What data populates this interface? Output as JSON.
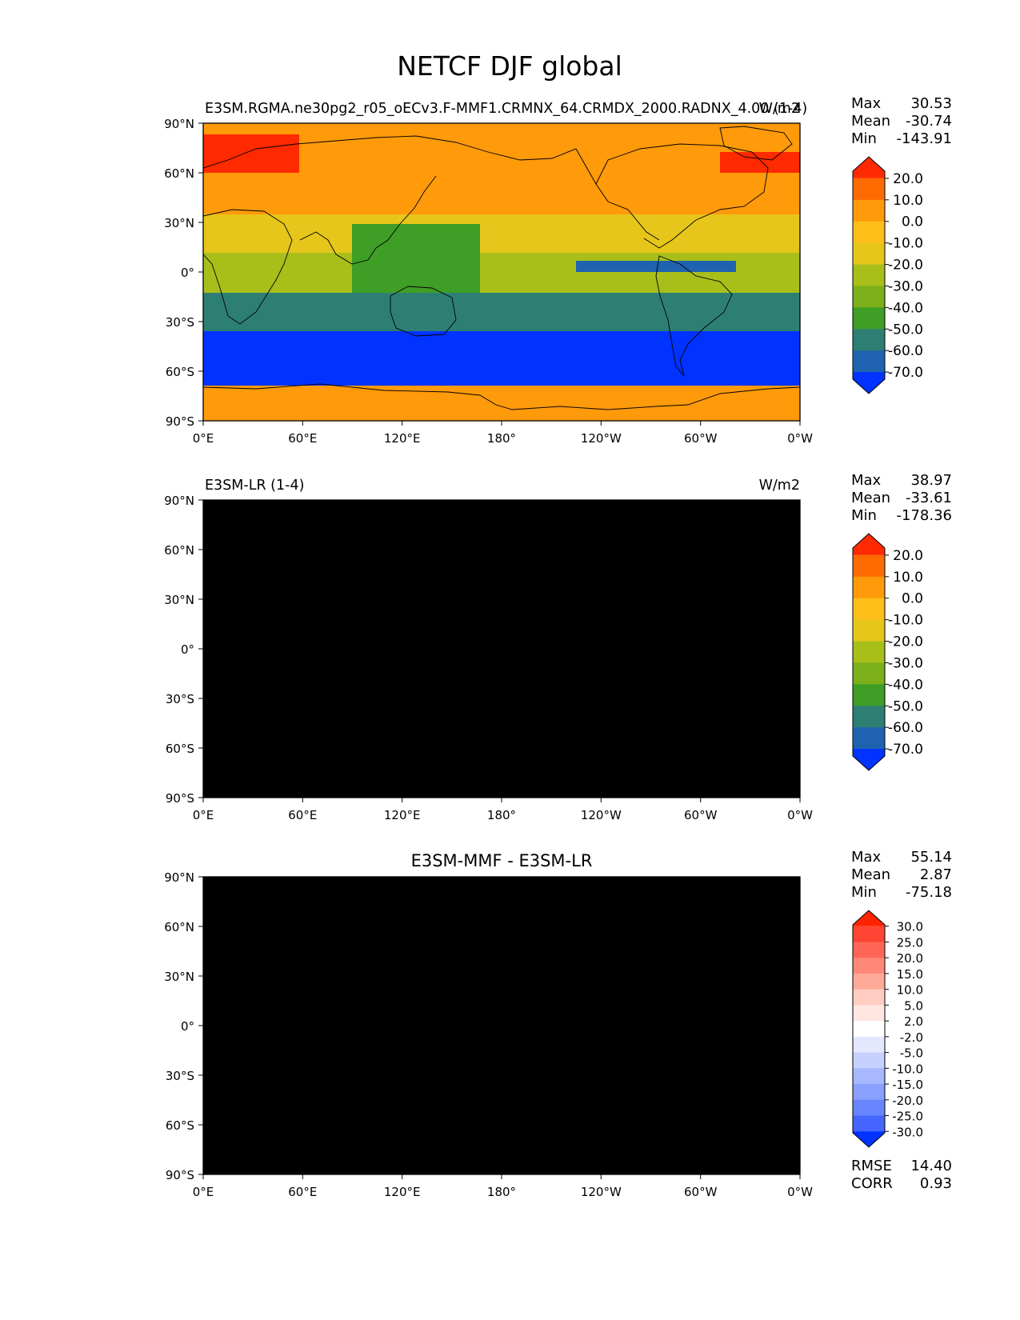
{
  "figure": {
    "title": "NETCF DJF global"
  },
  "axis_labels": {
    "lat": [
      "90°N",
      "60°N",
      "30°N",
      "0°",
      "30°S",
      "60°S",
      "90°S"
    ],
    "lon": [
      "0°E",
      "60°E",
      "120°E",
      "180°",
      "120°W",
      "60°W",
      "0°W"
    ]
  },
  "panels": [
    {
      "id": "test",
      "title_left": "E3SM.RGMA.ne30pg2_r05_oECv3.F-MMF1.CRMNX_64.CRMDX_2000.RADNX_4.00 (1-4)",
      "title_center": "",
      "title_right": "W/m2",
      "stats": [
        {
          "label": "Max",
          "value": "30.53"
        },
        {
          "label": "Mean",
          "value": "-30.74"
        },
        {
          "label": "Min",
          "value": "-143.91"
        }
      ],
      "colorbar": {
        "labels": [
          "20.0",
          "10.0",
          "0.0",
          "-10.0",
          "-20.0",
          "-30.0",
          "-40.0",
          "-50.0",
          "-60.0",
          "-70.0"
        ],
        "colors": [
          "#ff2a00",
          "#ff6a00",
          "#ff9a0a",
          "#ffbf1a",
          "#e6c61a",
          "#a8bf1a",
          "#7bb01a",
          "#3f9e26",
          "#2e7f73",
          "#1f63b0",
          "#0033ff"
        ]
      },
      "field_colors": {
        "polar": "#ff9a0a",
        "arctic_warm": "#ff2a00",
        "midlat": "#ff9a0a",
        "subtrop": "#e6c61a",
        "tropic": "#a8bf1a",
        "warmpool": "#3f9e26",
        "itcz": "#1f63b0",
        "south": "#2e7f73",
        "ocean_belt": "#0033ff",
        "antarctic": "#ff9a0a"
      }
    },
    {
      "id": "ref",
      "title_left": "E3SM-LR (1-4)",
      "title_center": "",
      "title_right": "W/m2",
      "stats": [
        {
          "label": "Max",
          "value": "38.97"
        },
        {
          "label": "Mean",
          "value": "-33.61"
        },
        {
          "label": "Min",
          "value": "-178.36"
        }
      ],
      "colorbar": {
        "labels": [
          "20.0",
          "10.0",
          "0.0",
          "-10.0",
          "-20.0",
          "-30.0",
          "-40.0",
          "-50.0",
          "-60.0",
          "-70.0"
        ],
        "colors": [
          "#ff2a00",
          "#ff6a00",
          "#ff9a0a",
          "#ffbf1a",
          "#e6c61a",
          "#a8bf1a",
          "#7bb01a",
          "#3f9e26",
          "#2e7f73",
          "#1f63b0",
          "#0033ff"
        ]
      },
      "field_colors": {
        "polar": "#ffbf1a",
        "arctic_warm": "#ff2a00",
        "midlat": "#ff9a0a",
        "subtrop": "#e6c61a",
        "tropic": "#a8bf1a",
        "warmpool": "#7bb01a",
        "itcz": "#a8bf1a",
        "south": "#3f9e26",
        "ocean_belt": "#0033ff",
        "antarctic": "#ffbf1a"
      }
    },
    {
      "id": "diff",
      "title_left": "",
      "title_center": "E3SM-MMF - E3SM-LR",
      "title_right": "",
      "stats": [
        {
          "label": "Max",
          "value": "55.14"
        },
        {
          "label": "Mean",
          "value": "2.87"
        },
        {
          "label": "Min",
          "value": "-75.18"
        }
      ],
      "colorbar": {
        "labels": [
          "30.0",
          "25.0",
          "20.0",
          "15.0",
          "10.0",
          "5.0",
          "2.0",
          "-2.0",
          "-5.0",
          "-10.0",
          "-15.0",
          "-20.0",
          "-25.0",
          "-30.0"
        ],
        "colors": [
          "#ff2200",
          "#ff4433",
          "#ff6655",
          "#ff8877",
          "#ffaa99",
          "#ffccc2",
          "#ffe6e1",
          "#ffffff",
          "#e3e8ff",
          "#c7d1ff",
          "#a8b8ff",
          "#8aa0ff",
          "#6685ff",
          "#4466ff",
          "#0033ff"
        ]
      },
      "field_colors": {
        "polar": "#c7d1ff",
        "arctic_warm": "#ffffff",
        "midlat": "#ffaa99",
        "subtrop": "#ff8877",
        "tropic": "#ffccc2",
        "warmpool": "#ff4433",
        "itcz": "#4466ff",
        "south": "#8aa0ff",
        "ocean_belt": "#ff2200",
        "antarctic": "#ffffff"
      }
    }
  ],
  "summary_stats": [
    {
      "label": "RMSE",
      "value": "14.40"
    },
    {
      "label": "CORR",
      "value": "0.93"
    }
  ]
}
